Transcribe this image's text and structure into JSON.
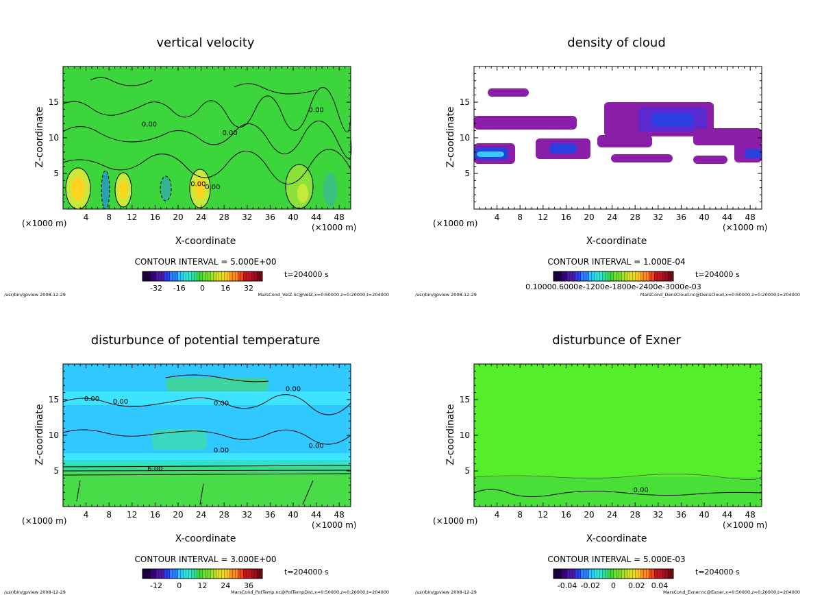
{
  "chart_data": [
    {
      "type": "heatmap",
      "title": "vertical velocity",
      "xlabel": "X-coordinate",
      "ylabel": "Z-coordinate",
      "x_unit_left": "(×1000 m)",
      "x_unit_right": "(×1000 m)",
      "xticks": [
        "4",
        "8",
        "12",
        "16",
        "20",
        "24",
        "28",
        "32",
        "36",
        "40",
        "44",
        "48"
      ],
      "yticks": [
        "5",
        "10",
        "15"
      ],
      "xlim": [
        0,
        50
      ],
      "ylim": [
        0,
        20
      ],
      "contour_interval": "CONTOUR INTERVAL = 5.000E+00",
      "time": "t=204000 s",
      "colorbar_ticks": [
        "-32",
        "-16",
        "0",
        "16",
        "32"
      ],
      "contour_labels": [
        "0.00",
        "0.00",
        "0.00",
        "0.00",
        "0.00"
      ],
      "footer_left": "/usr/bin/gpview   2008-12-29",
      "footer_right": "MarsCond_VelZ.nc@VelZ,x=0:50000,z=0:20000,t=204000",
      "background_color": "#3fd83f"
    },
    {
      "type": "heatmap",
      "title": "density of cloud",
      "xlabel": "X-coordinate",
      "ylabel": "Z-coordinate",
      "x_unit_left": "(×1000 m)",
      "x_unit_right": "(×1000 m)",
      "xticks": [
        "4",
        "8",
        "12",
        "16",
        "20",
        "24",
        "28",
        "32",
        "36",
        "40",
        "44",
        "48"
      ],
      "yticks": [
        "5",
        "10",
        "15"
      ],
      "xlim": [
        0,
        50
      ],
      "ylim": [
        0,
        20
      ],
      "contour_interval": "CONTOUR INTERVAL = 1.000E-04",
      "time": "t=204000 s",
      "colorbar_ticks_text": "0.10000.6000e-1200e-1800e-2400e-3000e-03",
      "footer_left": "/usr/bin/gpview   2008-12-29",
      "footer_right": "MarsCond_DensCloud.nc@DensCloud,x=0:50000,z=0:20000,t=204000",
      "background_color": "#ffffff"
    },
    {
      "type": "heatmap",
      "title": "disturbunce of potential temperature",
      "xlabel": "X-coordinate",
      "ylabel": "Z-coordinate",
      "x_unit_left": "(×1000 m)",
      "x_unit_right": "(×1000 m)",
      "xticks": [
        "4",
        "8",
        "12",
        "16",
        "20",
        "24",
        "28",
        "32",
        "36",
        "40",
        "44",
        "48"
      ],
      "yticks": [
        "5",
        "10",
        "15"
      ],
      "xlim": [
        0,
        50
      ],
      "ylim": [
        0,
        20
      ],
      "contour_interval": "CONTOUR INTERVAL = 3.000E+00",
      "time": "t=204000 s",
      "colorbar_ticks": [
        "-12",
        "0",
        "12",
        "24",
        "36"
      ],
      "contour_labels": [
        "0.00",
        "0.00",
        "0.00",
        "0.00",
        "0.00",
        "0.00",
        "6.00"
      ],
      "footer_left": "/usr/bin/gpview   2008-12-29",
      "footer_right": "MarsCond_PotTemp.nc@PotTempDist,x=0:50000,z=0:20000,t=204000",
      "background_color": "#33e6ff"
    },
    {
      "type": "heatmap",
      "title": "disturbunce of Exner",
      "xlabel": "X-coordinate",
      "ylabel": "Z-coordinate",
      "x_unit_left": "(×1000 m)",
      "x_unit_right": "(×1000 m)",
      "xticks": [
        "4",
        "8",
        "12",
        "16",
        "20",
        "24",
        "28",
        "32",
        "36",
        "40",
        "44",
        "48"
      ],
      "yticks": [
        "5",
        "10",
        "15"
      ],
      "xlim": [
        0,
        50
      ],
      "ylim": [
        0,
        20
      ],
      "contour_interval": "CONTOUR INTERVAL = 5.000E-03",
      "time": "t=204000 s",
      "colorbar_ticks": [
        "-0.04",
        "-0.02",
        "0",
        "0.02",
        "0.04"
      ],
      "contour_labels": [
        "0.00"
      ],
      "footer_left": "/usr/bin/gpview   2008-12-29",
      "footer_right": "MarsCond_Exner.nc@Exner,x=0:50000,z=0:20000,t=204000",
      "background_color": "#55ee2a"
    }
  ]
}
